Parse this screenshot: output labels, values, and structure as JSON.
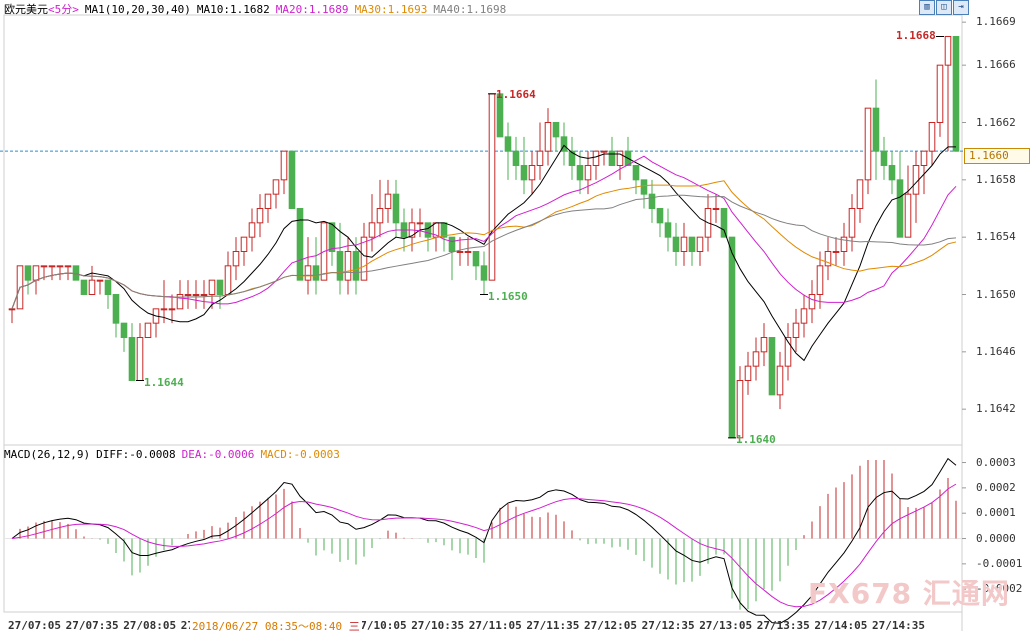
{
  "header": {
    "symbol": "欧元美元",
    "period": "<5分>",
    "ma_params": "MA1(10,20,30,40)",
    "ma10": "MA10:1.1682",
    "ma20": "MA20:1.1689",
    "ma30": "MA30:1.1693",
    "ma40": "MA40:1.1698"
  },
  "macd_header": {
    "params": "MACD(26,12,9)",
    "diff": "DIFF:-0.0008",
    "dea": "DEA:-0.0006",
    "macd": "MACD:-0.0003"
  },
  "toolbar": {
    "btn1": "▥",
    "btn2": "◫",
    "btn3": "⇥"
  },
  "price_box": "1.1660",
  "overlay_time": "2018/06/27 08:35～08:40",
  "overlay_suffix": "三",
  "watermark": "FX678 汇通网",
  "colors": {
    "up": "#c62828",
    "down": "#4caf50",
    "ma10": "#000000",
    "ma20": "#d020d0",
    "ma30": "#e08a00",
    "ma40": "#808080",
    "hline": "#2a8cd0"
  },
  "chart_data": [
    {
      "type": "candlestick",
      "title": "",
      "y_ticks": [
        "1.1669",
        "1.1666",
        "1.1662",
        "1.1658",
        "1.1654",
        "1.1650",
        "1.1646",
        "1.1642"
      ],
      "ylim": [
        1.16395,
        1.16695
      ],
      "current_price_line": 1.166,
      "x_labels": [
        "27/07:05",
        "27/07:35",
        "27/08:05",
        "27/08:35",
        "27/09:05",
        "27/09:35",
        "27/10:05",
        "27/10:35",
        "27/11:05",
        "27/11:35",
        "27/12:05",
        "27/12:35",
        "27/13:05",
        "27/13:35",
        "27/14:05",
        "27/14:35"
      ],
      "annotations": [
        {
          "text": "1.1644",
          "value": 1.1644,
          "index": 16,
          "color": "down"
        },
        {
          "text": "1.1650",
          "value": 1.165,
          "index": 59,
          "color": "down"
        },
        {
          "text": "1.1664",
          "value": 1.1664,
          "index": 60,
          "color": "up"
        },
        {
          "text": "1.1640",
          "value": 1.164,
          "index": 90,
          "color": "down"
        },
        {
          "text": "1.1668",
          "value": 1.1668,
          "index": 116,
          "color": "up"
        }
      ],
      "ohlc": [
        [
          1.1649,
          1.1649,
          1.1648,
          1.1649
        ],
        [
          1.1649,
          1.1652,
          1.1649,
          1.1652
        ],
        [
          1.1652,
          1.1652,
          1.165,
          1.1651
        ],
        [
          1.1651,
          1.1652,
          1.165,
          1.1652
        ],
        [
          1.1652,
          1.1652,
          1.1651,
          1.1652
        ],
        [
          1.1652,
          1.1652,
          1.1651,
          1.1652
        ],
        [
          1.1652,
          1.1652,
          1.1651,
          1.1652
        ],
        [
          1.1652,
          1.1652,
          1.1651,
          1.1652
        ],
        [
          1.1652,
          1.1652,
          1.1651,
          1.1651
        ],
        [
          1.1651,
          1.1651,
          1.165,
          1.165
        ],
        [
          1.165,
          1.1652,
          1.165,
          1.1651
        ],
        [
          1.1651,
          1.1651,
          1.165,
          1.1651
        ],
        [
          1.1651,
          1.1651,
          1.1649,
          1.165
        ],
        [
          1.165,
          1.165,
          1.1647,
          1.1648
        ],
        [
          1.1648,
          1.1648,
          1.1646,
          1.1647
        ],
        [
          1.1647,
          1.1648,
          1.1644,
          1.1644
        ],
        [
          1.1644,
          1.1648,
          1.1644,
          1.1647
        ],
        [
          1.1647,
          1.1648,
          1.1647,
          1.1648
        ],
        [
          1.1648,
          1.1649,
          1.1647,
          1.1649
        ],
        [
          1.1649,
          1.1651,
          1.1648,
          1.1649
        ],
        [
          1.1649,
          1.165,
          1.1648,
          1.1649
        ],
        [
          1.1649,
          1.1651,
          1.1649,
          1.165
        ],
        [
          1.165,
          1.1651,
          1.1649,
          1.165
        ],
        [
          1.165,
          1.1651,
          1.1649,
          1.165
        ],
        [
          1.165,
          1.1651,
          1.1649,
          1.165
        ],
        [
          1.165,
          1.1651,
          1.1649,
          1.1651
        ],
        [
          1.1651,
          1.1651,
          1.1649,
          1.165
        ],
        [
          1.165,
          1.1653,
          1.165,
          1.1652
        ],
        [
          1.1652,
          1.1654,
          1.1651,
          1.1653
        ],
        [
          1.1653,
          1.1654,
          1.1652,
          1.1654
        ],
        [
          1.1654,
          1.1656,
          1.1653,
          1.1655
        ],
        [
          1.1655,
          1.1657,
          1.1654,
          1.1656
        ],
        [
          1.1656,
          1.1657,
          1.1655,
          1.1657
        ],
        [
          1.1657,
          1.1658,
          1.1656,
          1.1658
        ],
        [
          1.1658,
          1.166,
          1.1657,
          1.166
        ],
        [
          1.166,
          1.166,
          1.1656,
          1.1656
        ],
        [
          1.1656,
          1.1656,
          1.1651,
          1.1651
        ],
        [
          1.1651,
          1.1654,
          1.165,
          1.1652
        ],
        [
          1.1652,
          1.1654,
          1.165,
          1.1651
        ],
        [
          1.1651,
          1.1655,
          1.1651,
          1.1655
        ],
        [
          1.1655,
          1.1655,
          1.1652,
          1.1653
        ],
        [
          1.1653,
          1.1655,
          1.165,
          1.1651
        ],
        [
          1.1651,
          1.1654,
          1.165,
          1.1653
        ],
        [
          1.1653,
          1.1654,
          1.165,
          1.1651
        ],
        [
          1.1651,
          1.1655,
          1.1651,
          1.1654
        ],
        [
          1.1654,
          1.1657,
          1.1653,
          1.1655
        ],
        [
          1.1655,
          1.1658,
          1.1654,
          1.1656
        ],
        [
          1.1656,
          1.1658,
          1.1655,
          1.1657
        ],
        [
          1.1657,
          1.1658,
          1.1654,
          1.1655
        ],
        [
          1.1655,
          1.1656,
          1.1653,
          1.1654
        ],
        [
          1.1654,
          1.1656,
          1.1653,
          1.1655
        ],
        [
          1.1655,
          1.1656,
          1.1654,
          1.1655
        ],
        [
          1.1655,
          1.1655,
          1.1653,
          1.1654
        ],
        [
          1.1654,
          1.1655,
          1.1653,
          1.1655
        ],
        [
          1.1655,
          1.1655,
          1.1653,
          1.1654
        ],
        [
          1.1654,
          1.1654,
          1.1651,
          1.1653
        ],
        [
          1.1653,
          1.1654,
          1.1652,
          1.1653
        ],
        [
          1.1653,
          1.1654,
          1.1652,
          1.1653
        ],
        [
          1.1653,
          1.1653,
          1.1651,
          1.1652
        ],
        [
          1.1652,
          1.1653,
          1.165,
          1.1651
        ],
        [
          1.1651,
          1.1664,
          1.1651,
          1.1664
        ],
        [
          1.1664,
          1.1664,
          1.1661,
          1.1661
        ],
        [
          1.1661,
          1.1662,
          1.1658,
          1.166
        ],
        [
          1.166,
          1.1661,
          1.1658,
          1.1659
        ],
        [
          1.1659,
          1.1661,
          1.1657,
          1.1658
        ],
        [
          1.1658,
          1.166,
          1.1657,
          1.1659
        ],
        [
          1.1659,
          1.1662,
          1.1658,
          1.166
        ],
        [
          1.166,
          1.1663,
          1.1659,
          1.1662
        ],
        [
          1.1662,
          1.1662,
          1.166,
          1.1661
        ],
        [
          1.1661,
          1.1662,
          1.1659,
          1.166
        ],
        [
          1.166,
          1.1661,
          1.1658,
          1.1659
        ],
        [
          1.1659,
          1.166,
          1.1657,
          1.1658
        ],
        [
          1.1658,
          1.166,
          1.1657,
          1.1659
        ],
        [
          1.1659,
          1.166,
          1.1658,
          1.166
        ],
        [
          1.166,
          1.166,
          1.1659,
          1.166
        ],
        [
          1.166,
          1.1661,
          1.1659,
          1.1659
        ],
        [
          1.1659,
          1.166,
          1.1658,
          1.166
        ],
        [
          1.166,
          1.1661,
          1.1659,
          1.1659
        ],
        [
          1.1659,
          1.1659,
          1.1657,
          1.1658
        ],
        [
          1.1658,
          1.1658,
          1.1656,
          1.1657
        ],
        [
          1.1657,
          1.1658,
          1.1655,
          1.1656
        ],
        [
          1.1656,
          1.1656,
          1.1654,
          1.1655
        ],
        [
          1.1655,
          1.1656,
          1.1653,
          1.1654
        ],
        [
          1.1654,
          1.1655,
          1.1652,
          1.1653
        ],
        [
          1.1653,
          1.1655,
          1.1652,
          1.1654
        ],
        [
          1.1654,
          1.1654,
          1.1652,
          1.1653
        ],
        [
          1.1653,
          1.1654,
          1.1652,
          1.1654
        ],
        [
          1.1654,
          1.1657,
          1.1653,
          1.1656
        ],
        [
          1.1656,
          1.1657,
          1.1655,
          1.1656
        ],
        [
          1.1656,
          1.1656,
          1.1654,
          1.1654
        ],
        [
          1.1654,
          1.1654,
          1.164,
          1.164
        ],
        [
          1.164,
          1.1645,
          1.164,
          1.1644
        ],
        [
          1.1644,
          1.1646,
          1.1643,
          1.1645
        ],
        [
          1.1645,
          1.1647,
          1.1644,
          1.1646
        ],
        [
          1.1646,
          1.1648,
          1.1645,
          1.1647
        ],
        [
          1.1647,
          1.1647,
          1.1643,
          1.1643
        ],
        [
          1.1643,
          1.1646,
          1.1642,
          1.1645
        ],
        [
          1.1645,
          1.1648,
          1.1644,
          1.1647
        ],
        [
          1.1647,
          1.1649,
          1.1646,
          1.1648
        ],
        [
          1.1648,
          1.165,
          1.1647,
          1.1649
        ],
        [
          1.1649,
          1.1651,
          1.1648,
          1.165
        ],
        [
          1.165,
          1.1653,
          1.1649,
          1.1652
        ],
        [
          1.1652,
          1.1654,
          1.1651,
          1.1653
        ],
        [
          1.1653,
          1.1654,
          1.1652,
          1.1653
        ],
        [
          1.1653,
          1.1655,
          1.1652,
          1.1654
        ],
        [
          1.1654,
          1.1657,
          1.1653,
          1.1656
        ],
        [
          1.1656,
          1.1658,
          1.1655,
          1.1658
        ],
        [
          1.1658,
          1.1663,
          1.1657,
          1.1663
        ],
        [
          1.1663,
          1.1665,
          1.1658,
          1.166
        ],
        [
          1.166,
          1.1661,
          1.1658,
          1.1659
        ],
        [
          1.1659,
          1.166,
          1.1657,
          1.1658
        ],
        [
          1.1658,
          1.166,
          1.1654,
          1.1654
        ],
        [
          1.1654,
          1.1659,
          1.1654,
          1.1657
        ],
        [
          1.1657,
          1.166,
          1.1655,
          1.1659
        ],
        [
          1.1659,
          1.166,
          1.1657,
          1.166
        ],
        [
          1.166,
          1.1662,
          1.1659,
          1.1662
        ],
        [
          1.1662,
          1.1666,
          1.1661,
          1.1666
        ],
        [
          1.1666,
          1.1668,
          1.166,
          1.1668
        ],
        [
          1.1668,
          1.1668,
          1.166,
          1.166
        ]
      ]
    },
    {
      "type": "bar",
      "title": "MACD",
      "y_ticks": [
        "0.0003",
        "0.0002",
        "0.0001",
        "0.0000",
        "-0.0001",
        "-0.0002"
      ],
      "ylim": [
        -0.00029,
        0.00031
      ]
    }
  ]
}
